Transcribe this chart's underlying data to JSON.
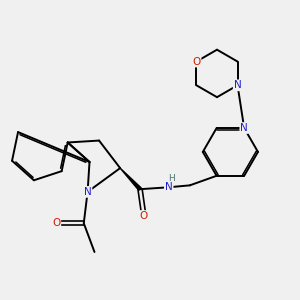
{
  "bg_color": "#f0f0f0",
  "atom_colors": {
    "N": "#2020cc",
    "O": "#cc2000",
    "H": "#507070"
  },
  "bond_color": "#000000",
  "bond_width": 1.4,
  "dbo": 0.055,
  "figsize": [
    3.0,
    3.0
  ],
  "dpi": 100
}
